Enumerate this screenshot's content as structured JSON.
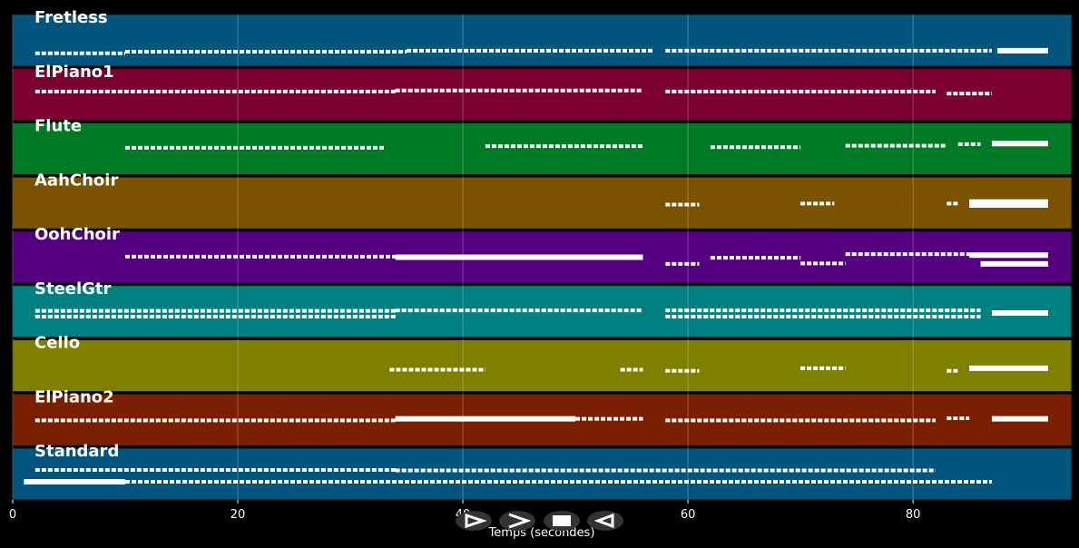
{
  "chart_data": {
    "type": "pianoroll",
    "xlabel": "Temps (secondes)",
    "xlim": [
      0,
      94.1
    ],
    "xticks": [
      0,
      20,
      40,
      60,
      80
    ],
    "grid": true,
    "note_color": "#ffffff",
    "tracks": [
      {
        "name": "Fretless",
        "color": "#01557f",
        "notes": [
          [
            2,
            10,
            25,
            false
          ],
          [
            10,
            35,
            28,
            false
          ],
          [
            35,
            57,
            30,
            false
          ],
          [
            58,
            87,
            30,
            false
          ],
          [
            87.5,
            92,
            30,
            true
          ]
        ]
      },
      {
        "name": "ElPiano1",
        "color": "#7a0030",
        "notes": [
          [
            2,
            34,
            56,
            false
          ],
          [
            34,
            56,
            58,
            false
          ],
          [
            58,
            82,
            56,
            false
          ],
          [
            83,
            87,
            52,
            false
          ]
        ]
      },
      {
        "name": "Flute",
        "color": "#007a25",
        "notes": [
          [
            10,
            33,
            52,
            false
          ],
          [
            42,
            56,
            55,
            false
          ],
          [
            62,
            70,
            53,
            false
          ],
          [
            74,
            83,
            56,
            false
          ],
          [
            84,
            86,
            59,
            false
          ],
          [
            87,
            92,
            60,
            true
          ]
        ]
      },
      {
        "name": "AahChoir",
        "color": "#7a5200",
        "notes": [
          [
            58,
            61,
            47,
            false
          ],
          [
            70,
            73,
            49,
            false
          ],
          [
            83,
            84,
            49,
            false
          ],
          [
            85,
            92,
            52,
            true
          ],
          [
            85,
            92,
            46,
            true
          ]
        ]
      },
      {
        "name": "OohChoir",
        "color": "#540080",
        "notes": [
          [
            10,
            34,
            51,
            false
          ],
          [
            34,
            56,
            50,
            true
          ],
          [
            58,
            61,
            37,
            false
          ],
          [
            62,
            70,
            49,
            false
          ],
          [
            70,
            74,
            38,
            false
          ],
          [
            74,
            85,
            56,
            false
          ],
          [
            85,
            92,
            54,
            true
          ],
          [
            86,
            92,
            37,
            true
          ]
        ]
      },
      {
        "name": "SteelGtr",
        "color": "#008080",
        "notes": [
          [
            2,
            34,
            51,
            false
          ],
          [
            2,
            34,
            40,
            false
          ],
          [
            34,
            56,
            52,
            false
          ],
          [
            58,
            86,
            52,
            false
          ],
          [
            58,
            86,
            40,
            false
          ],
          [
            87,
            92,
            47,
            true
          ]
        ]
      },
      {
        "name": "Cello",
        "color": "#7f7f00",
        "notes": [
          [
            33.5,
            42,
            42,
            false
          ],
          [
            54,
            56,
            42,
            false
          ],
          [
            58,
            61,
            40,
            false
          ],
          [
            70,
            74,
            45,
            false
          ],
          [
            83,
            84,
            40,
            false
          ],
          [
            85,
            92,
            45,
            true
          ]
        ]
      },
      {
        "name": "ElPiano2",
        "color": "#7a2000",
        "notes": [
          [
            2,
            34,
            49,
            false
          ],
          [
            34,
            50,
            52,
            true
          ],
          [
            50,
            56,
            52,
            false
          ],
          [
            58,
            82,
            49,
            false
          ],
          [
            83,
            85,
            53,
            false
          ],
          [
            87,
            92,
            52,
            true
          ]
        ]
      },
      {
        "name": "Standard",
        "color": "#01557f",
        "notes": [
          [
            2,
            34,
            58,
            false
          ],
          [
            34,
            82,
            57,
            false
          ],
          [
            1,
            10,
            35,
            true
          ],
          [
            10,
            87,
            35,
            false
          ]
        ]
      }
    ]
  }
}
